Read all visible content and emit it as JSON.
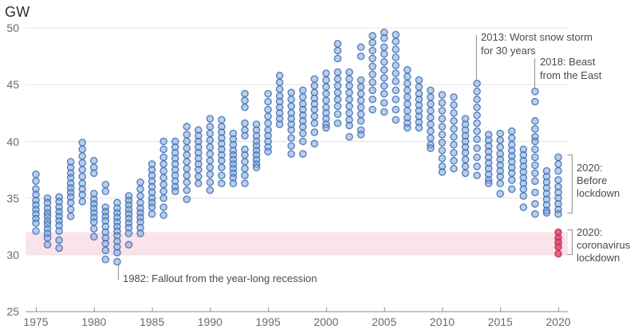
{
  "unit_label": "GW",
  "colors": {
    "dot_blue_fill": "#7fa5d9",
    "dot_blue_stroke": "#3f6fb4",
    "dot_red_fill": "#e14b6d",
    "dot_red_stroke": "#b82e50",
    "band_pink": "#fae4ea",
    "gridline": "#e3e3e3",
    "axis": "#8f8f8f",
    "annotation_line": "#9e9e9e"
  },
  "annotations": {
    "recession_1982": "1982: Fallout from the year-long recession",
    "snow_storm_2013": "2013: Worst snow storm\nfor 30 years",
    "beast_2018": "2018: Beast\nfrom the East",
    "before_lockdown_2020": "2020:\nBefore\nlockdown",
    "coronavirus_lockdown_2020": "2020:\ncoronavirus\nlockdown"
  },
  "chart_data": {
    "type": "scatter",
    "ylabel": "GW",
    "y_ticks": [
      25,
      30,
      35,
      40,
      45,
      50
    ],
    "x_ticks": [
      1975,
      1980,
      1985,
      1990,
      1995,
      2000,
      2005,
      2010,
      2015,
      2020
    ],
    "x_range": [
      1974,
      2021
    ],
    "y_range": [
      25,
      50
    ],
    "grid": "horizontal",
    "legend": "none",
    "highlight_band": {
      "y_from": 30,
      "y_to": 32
    },
    "series": [
      {
        "id": "historic",
        "color_key": "blue",
        "points_by_year": {
          "1975": [
            37.1,
            36.5,
            35.8,
            35.3,
            34.8,
            34.4,
            34.0,
            33.6,
            33.2,
            32.8,
            32.1
          ],
          "1976": [
            35.0,
            34.6,
            34.1,
            33.7,
            33.4,
            33.0,
            32.7,
            32.3,
            31.9,
            31.5,
            30.9
          ],
          "1977": [
            35.1,
            34.7,
            34.2,
            33.8,
            33.4,
            33.0,
            32.6,
            32.1,
            31.3,
            30.6
          ],
          "1978": [
            38.2,
            37.7,
            37.2,
            36.8,
            36.3,
            35.9,
            35.5,
            35.1,
            34.6,
            34.0,
            33.4
          ],
          "1979": [
            39.9,
            39.3,
            38.7,
            38.1,
            37.5,
            36.9,
            36.3,
            35.8,
            35.3,
            34.7
          ],
          "1980": [
            38.3,
            37.7,
            37.2,
            35.4,
            34.9,
            34.5,
            34.1,
            33.7,
            33.3,
            32.9,
            32.3,
            31.6
          ],
          "1981": [
            36.2,
            35.6,
            34.2,
            33.8,
            33.4,
            33.0,
            32.5,
            32.0,
            31.5,
            31.0,
            30.4,
            29.6
          ],
          "1982": [
            34.6,
            34.1,
            33.7,
            33.3,
            32.9,
            32.5,
            32.1,
            31.7,
            31.2,
            30.7,
            30.2,
            29.4
          ],
          "1983": [
            35.2,
            34.8,
            34.4,
            34.0,
            33.6,
            33.2,
            32.8,
            32.4,
            31.9,
            30.9
          ],
          "1984": [
            36.4,
            35.8,
            35.2,
            34.6,
            34.1,
            33.7,
            33.3,
            32.9,
            32.4,
            31.9
          ],
          "1985": [
            38.0,
            37.5,
            37.0,
            36.5,
            36.0,
            35.5,
            35.0,
            34.6,
            34.2,
            33.6
          ],
          "1986": [
            40.0,
            39.3,
            38.6,
            38.0,
            37.4,
            36.8,
            36.2,
            35.6,
            35.0,
            34.2,
            33.5
          ],
          "1987": [
            40.0,
            39.5,
            39.0,
            38.5,
            38.0,
            37.5,
            37.0,
            36.5,
            36.0,
            35.6
          ],
          "1988": [
            41.3,
            40.6,
            40.0,
            39.4,
            38.8,
            38.2,
            37.6,
            37.0,
            36.4,
            35.7,
            34.9
          ],
          "1989": [
            41.0,
            40.5,
            40.0,
            39.5,
            39.0,
            38.5,
            38.0,
            37.5,
            36.9,
            36.3
          ],
          "1990": [
            42.0,
            41.3,
            40.7,
            40.1,
            39.5,
            38.9,
            38.3,
            37.7,
            37.1,
            36.4,
            35.7
          ],
          "1991": [
            41.9,
            41.3,
            40.8,
            40.3,
            39.8,
            39.3,
            38.8,
            38.3,
            37.7,
            37.0,
            36.3
          ],
          "1992": [
            40.7,
            40.2,
            39.7,
            39.2,
            38.8,
            38.4,
            38.0,
            37.6,
            37.2,
            36.8,
            36.3
          ],
          "1993": [
            44.2,
            43.6,
            43.0,
            41.6,
            41.0,
            40.5,
            39.3,
            38.8,
            38.2,
            37.6,
            37.0,
            36.3
          ],
          "1994": [
            41.5,
            41.0,
            40.5,
            40.0,
            39.6,
            39.2,
            38.8,
            38.4,
            38.0,
            37.7
          ],
          "1995": [
            44.2,
            43.5,
            42.8,
            42.2,
            41.6,
            41.0,
            40.5,
            40.0,
            39.5,
            39.1
          ],
          "1996": [
            45.8,
            45.2,
            44.6,
            44.0,
            43.5,
            43.0,
            42.5,
            42.0,
            41.5
          ],
          "1997": [
            44.3,
            43.7,
            43.1,
            42.5,
            42.0,
            41.5,
            41.0,
            40.3,
            39.6,
            38.9
          ],
          "1998": [
            44.5,
            43.9,
            43.3,
            42.8,
            42.3,
            41.8,
            41.3,
            40.7,
            40.0,
            38.9
          ],
          "1999": [
            45.5,
            44.9,
            44.3,
            43.8,
            43.3,
            42.8,
            42.2,
            41.6,
            40.8,
            39.8
          ],
          "2000": [
            46.0,
            45.4,
            44.8,
            44.2,
            43.6,
            43.0,
            42.5,
            42.0,
            41.5,
            41.2
          ],
          "2001": [
            48.6,
            48.0,
            47.3,
            46.1,
            45.5,
            44.9,
            44.3,
            43.7,
            43.1,
            42.4,
            41.6
          ],
          "2002": [
            46.1,
            45.5,
            44.9,
            44.3,
            43.7,
            43.1,
            42.5,
            41.9,
            41.4,
            40.4
          ],
          "2003": [
            48.3,
            47.5,
            45.4,
            44.8,
            44.2,
            43.6,
            43.0,
            42.4,
            41.8,
            41.0,
            40.6
          ],
          "2004": [
            49.3,
            48.7,
            48.0,
            47.3,
            46.6,
            45.9,
            45.2,
            44.5,
            43.7,
            42.8
          ],
          "2005": [
            49.6,
            49.1,
            48.3,
            47.7,
            47.0,
            46.3,
            45.6,
            44.9,
            44.2,
            43.4,
            42.6
          ],
          "2006": [
            49.4,
            48.8,
            48.1,
            47.4,
            46.7,
            46.0,
            45.3,
            44.5,
            43.7,
            42.8,
            41.9
          ],
          "2007": [
            46.3,
            45.7,
            45.1,
            44.5,
            43.9,
            43.3,
            42.7,
            42.1,
            41.6,
            41.2
          ],
          "2008": [
            45.4,
            44.8,
            44.2,
            43.7,
            43.2,
            42.7,
            42.2,
            41.7,
            41.2
          ],
          "2009": [
            44.5,
            43.9,
            43.3,
            42.7,
            42.1,
            41.5,
            40.9,
            40.3,
            39.7,
            39.4
          ],
          "2010": [
            44.1,
            43.4,
            42.7,
            42.0,
            41.3,
            40.6,
            39.9,
            39.2,
            38.5,
            37.8,
            37.3
          ],
          "2011": [
            43.9,
            43.2,
            42.5,
            41.8,
            41.1,
            40.4,
            39.7,
            39.0,
            38.3,
            37.6
          ],
          "2012": [
            42.0,
            41.5,
            41.0,
            40.5,
            40.0,
            39.5,
            39.0,
            38.4,
            37.8,
            37.2
          ],
          "2013": [
            45.1,
            44.4,
            43.7,
            43.0,
            42.3,
            41.6,
            40.9,
            40.2,
            39.4,
            38.6,
            37.8,
            37.0
          ],
          "2014": [
            40.6,
            40.1,
            39.6,
            39.1,
            38.6,
            38.1,
            37.6,
            37.1,
            36.6,
            36.3
          ],
          "2015": [
            40.7,
            40.1,
            39.5,
            38.9,
            38.4,
            37.9,
            37.4,
            36.9,
            36.3,
            35.4
          ],
          "2016": [
            40.9,
            40.3,
            39.7,
            39.2,
            38.7,
            38.2,
            37.7,
            37.2,
            36.6,
            35.8
          ],
          "2017": [
            39.3,
            38.8,
            38.3,
            37.8,
            37.3,
            36.8,
            36.3,
            35.8,
            35.2,
            34.2
          ],
          "2018": [
            44.4,
            43.5,
            41.8,
            41.1,
            40.4,
            40.0,
            39.3,
            38.6,
            37.9,
            37.2,
            36.5,
            35.5,
            34.5,
            33.6
          ],
          "2019": [
            37.4,
            36.9,
            36.4,
            35.9,
            35.4,
            34.9,
            34.4,
            33.9,
            33.7
          ],
          "2020": [
            38.6,
            38.0,
            37.4,
            36.6,
            36.0,
            35.5,
            35.0,
            34.5,
            34.0,
            33.6
          ]
        }
      },
      {
        "id": "lockdown_2020",
        "color_key": "red",
        "points_by_year": {
          "2020": [
            32.0,
            31.5,
            31.1,
            30.7,
            30.1
          ]
        }
      }
    ]
  }
}
